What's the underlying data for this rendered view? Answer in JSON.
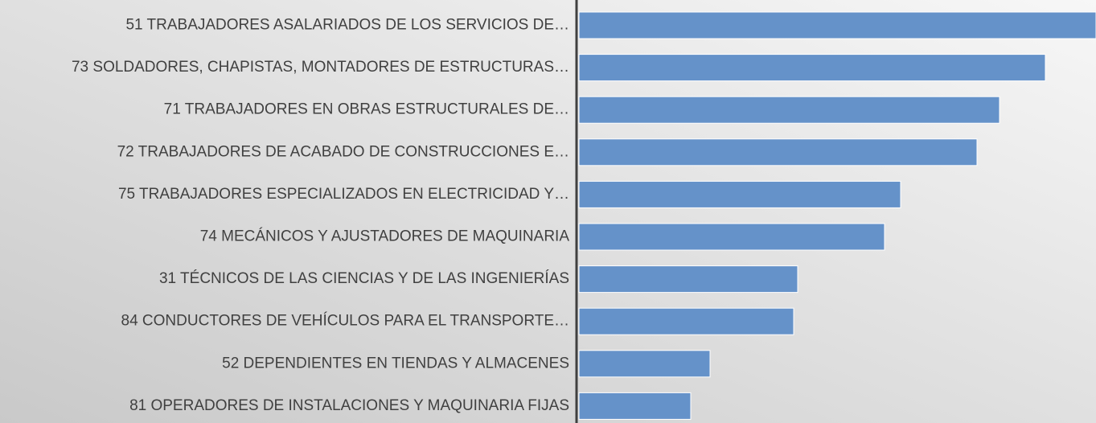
{
  "chart_data": {
    "type": "bar",
    "orientation": "horizontal",
    "categories": [
      "51 TRABAJADORES ASALARIADOS DE LOS SERVICIOS DE…",
      "73 SOLDADORES, CHAPISTAS, MONTADORES DE ESTRUCTURAS…",
      "71 TRABAJADORES EN OBRAS ESTRUCTURALES DE…",
      "72 TRABAJADORES DE ACABADO DE CONSTRUCCIONES E…",
      "75 TRABAJADORES ESPECIALIZADOS EN ELECTRICIDAD Y…",
      "74 MECÁNICOS Y AJUSTADORES DE MAQUINARIA",
      "31 TÉCNICOS DE LAS CIENCIAS Y DE LAS INGENIERÍAS",
      "84 CONDUCTORES DE VEHÍCULOS PARA EL TRANSPORTE…",
      "52 DEPENDIENTES EN TIENDAS Y ALMACENES",
      "81 OPERADORES DE INSTALACIONES Y MAQUINARIA FIJAS"
    ],
    "values": [
      643,
      580,
      523,
      495,
      400,
      380,
      272,
      267,
      163,
      139
    ],
    "color": "#6592c9",
    "xlim": [
      0,
      643
    ]
  }
}
